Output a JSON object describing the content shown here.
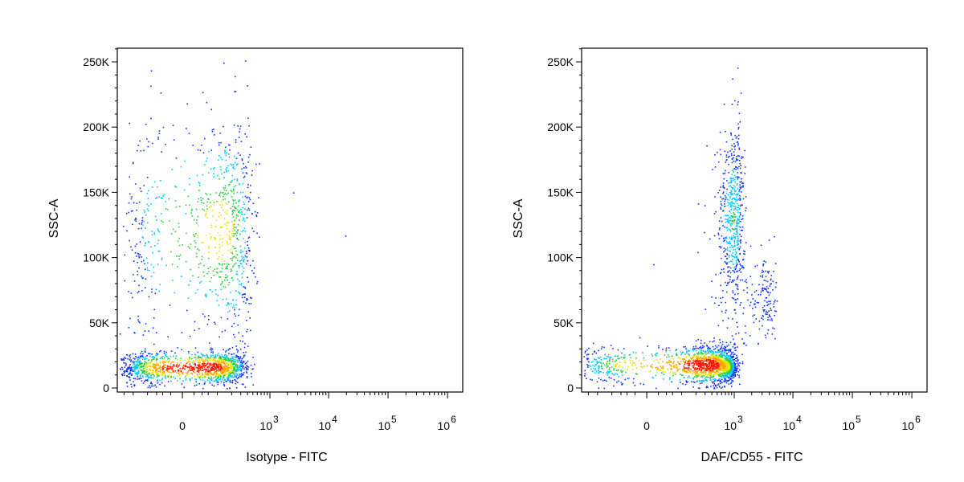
{
  "chart_data": [
    {
      "type": "scatter",
      "title": "",
      "xlabel": "Isotype - FITC",
      "ylabel": "SSC-A",
      "x_scale": "biexponential",
      "ylim": [
        0,
        262144
      ],
      "y_ticks": [
        {
          "value": 0,
          "label": "0"
        },
        {
          "value": 50000,
          "label": "50K"
        },
        {
          "value": 100000,
          "label": "100K"
        },
        {
          "value": 150000,
          "label": "150K"
        },
        {
          "value": 200000,
          "label": "200K"
        },
        {
          "value": 250000,
          "label": "250K"
        }
      ],
      "x_ticks": [
        {
          "value": 0,
          "base": "0",
          "exp": ""
        },
        {
          "value": 1000,
          "base": "10",
          "exp": "3"
        },
        {
          "value": 10000,
          "base": "10",
          "exp": "4"
        },
        {
          "value": 100000,
          "base": "10",
          "exp": "5"
        },
        {
          "value": 1000000,
          "base": "10",
          "exp": "6"
        }
      ],
      "populations": [
        {
          "name": "core",
          "x_mean": 40,
          "x_sd": 150,
          "y_mean": 16000,
          "y_sd": 6000,
          "n": 1400
        },
        {
          "name": "side-scatter-high",
          "x_mean": 120,
          "x_sd": 180,
          "y_mean": 120000,
          "y_sd": 45000,
          "n": 900
        }
      ],
      "outliers": [
        {
          "x": 2500,
          "y": 150000
        },
        {
          "x": 19000,
          "y": 117000
        },
        {
          "x": 250,
          "y": 115000
        },
        {
          "x": 300,
          "y": 17000
        },
        {
          "x": 450,
          "y": 18000
        },
        {
          "x": 70,
          "y": 214000
        }
      ]
    },
    {
      "type": "scatter",
      "title": "",
      "xlabel": "DAF/CD55 - FITC",
      "ylabel": "SSC-A",
      "x_scale": "biexponential",
      "ylim": [
        0,
        262144
      ],
      "y_ticks": [
        {
          "value": 0,
          "label": "0"
        },
        {
          "value": 50000,
          "label": "50K"
        },
        {
          "value": 100000,
          "label": "100K"
        },
        {
          "value": 150000,
          "label": "150K"
        },
        {
          "value": 200000,
          "label": "200K"
        },
        {
          "value": 250000,
          "label": "250K"
        }
      ],
      "x_ticks": [
        {
          "value": 0,
          "base": "0",
          "exp": ""
        },
        {
          "value": 1000,
          "base": "10",
          "exp": "3"
        },
        {
          "value": 10000,
          "base": "10",
          "exp": "4"
        },
        {
          "value": 100000,
          "base": "10",
          "exp": "5"
        },
        {
          "value": 1000000,
          "base": "10",
          "exp": "6"
        }
      ],
      "populations": [
        {
          "name": "low-scatter-band",
          "x_mean": 300,
          "x_sd": 350,
          "y_mean": 18000,
          "y_sd": 7000,
          "n": 1500
        },
        {
          "name": "dense-spot",
          "x_mean": 800,
          "x_sd": 120,
          "y_mean": 16000,
          "y_sd": 4000,
          "n": 300
        },
        {
          "name": "side-scatter-high",
          "x_mean": 950,
          "x_sd": 250,
          "y_mean": 130000,
          "y_sd": 35000,
          "n": 600
        },
        {
          "name": "right-shoulder",
          "x_mean": 3200,
          "x_sd": 900,
          "y_mean": 70000,
          "y_sd": 18000,
          "n": 150
        }
      ],
      "outliers": [
        {
          "x": 650,
          "y": 218000
        },
        {
          "x": 900,
          "y": 218000
        },
        {
          "x": 10,
          "y": 95000
        }
      ]
    }
  ]
}
